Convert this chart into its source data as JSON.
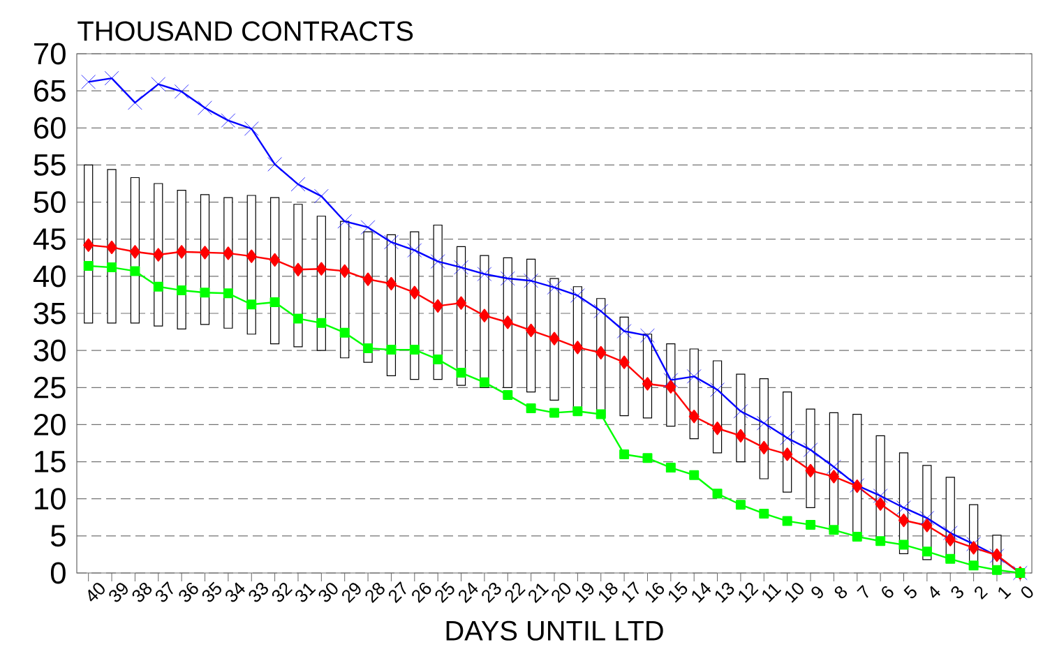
{
  "chart_data": {
    "type": "line",
    "title": "THOUSAND CONTRACTS",
    "xlabel": "DAYS UNTIL LTD",
    "categories": [
      "40",
      "39",
      "38",
      "37",
      "36",
      "35",
      "34",
      "33",
      "32",
      "31",
      "30",
      "29",
      "28",
      "27",
      "26",
      "25",
      "24",
      "23",
      "22",
      "21",
      "20",
      "19",
      "18",
      "17",
      "16",
      "15",
      "14",
      "13",
      "12",
      "11",
      "10",
      "9",
      "8",
      "7",
      "6",
      "5",
      "4",
      "3",
      "2",
      "1",
      "0"
    ],
    "ylim": [
      0,
      70
    ],
    "yticks": [
      0,
      5,
      10,
      15,
      20,
      25,
      30,
      35,
      40,
      45,
      50,
      55,
      60,
      65,
      70
    ],
    "grid": "y",
    "series": [
      {
        "type": "bar",
        "color": "#ffffff",
        "base": [
          33.7,
          33.7,
          33.7,
          33.3,
          32.9,
          33.5,
          33.0,
          32.2,
          30.9,
          30.5,
          30.0,
          29.0,
          28.4,
          26.6,
          26.1,
          26.1,
          25.3,
          25.0,
          25.0,
          24.4,
          23.3,
          21.8,
          21.0,
          21.2,
          20.9,
          19.8,
          18.1,
          16.2,
          15.0,
          12.7,
          10.9,
          8.8,
          5.6,
          4.9,
          4.2,
          2.6,
          1.8,
          1.6,
          0.9,
          0.3,
          null
        ],
        "values": [
          21.3,
          20.7,
          19.6,
          19.2,
          18.7,
          17.5,
          17.6,
          18.7,
          19.7,
          19.2,
          18.1,
          18.4,
          17.6,
          19.0,
          19.9,
          20.8,
          18.7,
          17.8,
          17.5,
          17.9,
          16.4,
          16.8,
          16.0,
          13.3,
          11.3,
          11.1,
          12.1,
          12.4,
          11.8,
          13.5,
          13.5,
          13.3,
          16.0,
          16.5,
          14.3,
          13.6,
          12.7,
          11.3,
          8.3,
          4.8,
          null
        ]
      },
      {
        "color": "#0000ff",
        "marker": "cross",
        "values": [
          66.2,
          66.7,
          63.4,
          65.9,
          64.9,
          62.7,
          61.0,
          59.9,
          55.1,
          52.4,
          50.8,
          47.4,
          46.6,
          44.6,
          43.5,
          42.0,
          41.2,
          40.3,
          39.7,
          39.4,
          38.5,
          37.4,
          35.3,
          32.6,
          32.0,
          26.0,
          26.5,
          24.7,
          21.8,
          20.2,
          18.2,
          16.6,
          14.3,
          11.8,
          10.4,
          8.8,
          7.4,
          5.4,
          3.9,
          2.3,
          0
        ]
      },
      {
        "color": "#ff0000",
        "marker": "diamond",
        "values": [
          44.2,
          43.9,
          43.3,
          42.9,
          43.3,
          43.2,
          43.1,
          42.7,
          42.2,
          40.9,
          41.0,
          40.7,
          39.6,
          39.0,
          37.8,
          36.0,
          36.4,
          34.7,
          33.8,
          32.7,
          31.6,
          30.4,
          29.7,
          28.4,
          25.5,
          25.1,
          21.1,
          19.5,
          18.5,
          16.9,
          16.0,
          13.8,
          13.0,
          11.7,
          9.3,
          7.1,
          6.4,
          4.5,
          3.4,
          2.4,
          0
        ]
      },
      {
        "color": "#00ff00",
        "marker": "square",
        "values": [
          41.4,
          41.2,
          40.7,
          38.6,
          38.1,
          37.8,
          37.7,
          36.2,
          36.5,
          34.3,
          33.7,
          32.4,
          30.3,
          30.1,
          30.1,
          28.8,
          27.0,
          25.7,
          24.0,
          22.2,
          21.6,
          21.8,
          21.4,
          16.0,
          15.5,
          14.2,
          13.2,
          10.7,
          9.2,
          8.0,
          7.0,
          6.5,
          5.8,
          4.9,
          4.3,
          3.8,
          2.9,
          1.9,
          1.0,
          0.4,
          0
        ]
      }
    ]
  }
}
